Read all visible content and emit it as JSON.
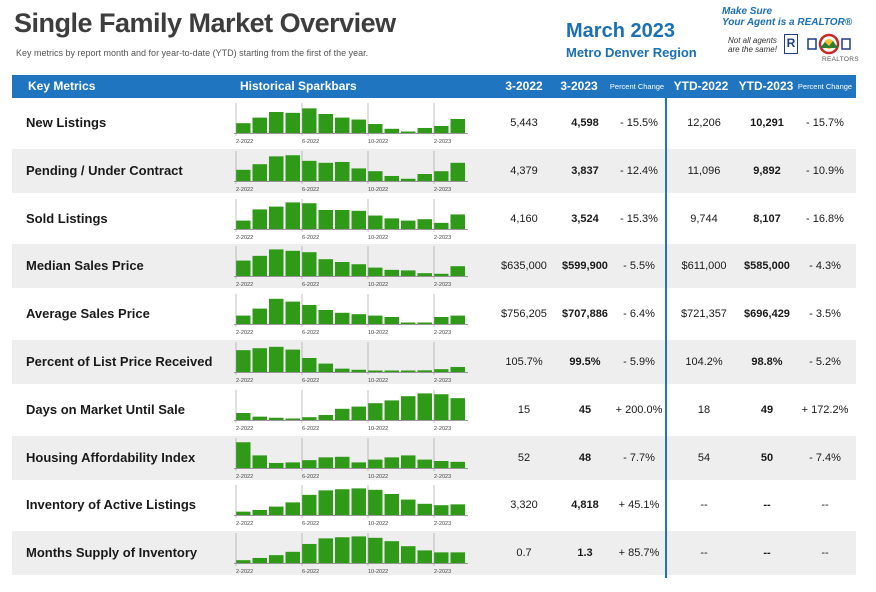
{
  "header": {
    "title": "Single Family Market Overview",
    "subtitle": "Key metrics by report month and for year-to-date (YTD) starting from the first of the year.",
    "month": "March 2023",
    "region": "Metro Denver Region"
  },
  "badge": {
    "line1": "Make Sure",
    "line2": "Your Agent is a REALTOR®",
    "note1": "Not all agents",
    "note2": "are the same!",
    "r_mark": "R",
    "org": "REALTORS"
  },
  "columns": {
    "metric": "Key Metrics",
    "spark": "Historical Sparkbars",
    "prev": "3-2022",
    "curr": "3-2023",
    "pct": "Percent Change",
    "ytd_prev": "YTD-2022",
    "ytd_curr": "YTD-2023",
    "ytd_pct": "Percent Change"
  },
  "spark_axis": [
    "2-2022",
    "6-2022",
    "10-2022",
    "2-2023"
  ],
  "colors": {
    "header": "#1f75bf",
    "bar": "#2f9a17",
    "shade": "#eeeeee",
    "title": "#3d3d3d",
    "accent": "#1a6fb5"
  },
  "rows": [
    {
      "name": "New Listings",
      "prev": "5,443",
      "curr": "4,598",
      "pct": "- 15.5%",
      "ytd_prev": "12,206",
      "ytd_curr": "10,291",
      "ytd_pct": "- 15.7%",
      "spark": [
        0.35,
        0.55,
        0.75,
        0.72,
        0.88,
        0.68,
        0.55,
        0.48,
        0.32,
        0.15,
        0.05,
        0.18,
        0.25,
        0.5
      ]
    },
    {
      "name": "Pending / Under Contract",
      "prev": "4,379",
      "curr": "3,837",
      "pct": "- 12.4%",
      "ytd_prev": "11,096",
      "ytd_curr": "9,892",
      "ytd_pct": "- 10.9%",
      "spark": [
        0.4,
        0.6,
        0.88,
        0.92,
        0.72,
        0.65,
        0.68,
        0.45,
        0.35,
        0.18,
        0.08,
        0.25,
        0.35,
        0.65
      ]
    },
    {
      "name": "Sold Listings",
      "prev": "4,160",
      "curr": "3,524",
      "pct": "- 15.3%",
      "ytd_prev": "9,744",
      "ytd_curr": "8,107",
      "ytd_pct": "- 16.8%",
      "spark": [
        0.3,
        0.7,
        0.8,
        0.95,
        0.92,
        0.68,
        0.68,
        0.65,
        0.48,
        0.38,
        0.3,
        0.35,
        0.22,
        0.52
      ]
    },
    {
      "name": "Median Sales Price",
      "prev": "$635,000",
      "curr": "$599,900",
      "pct": "- 5.5%",
      "ytd_prev": "$611,000",
      "ytd_curr": "$585,000",
      "ytd_pct": "- 4.3%",
      "spark": [
        0.55,
        0.72,
        0.95,
        0.9,
        0.85,
        0.6,
        0.5,
        0.42,
        0.3,
        0.22,
        0.2,
        0.1,
        0.08,
        0.35
      ]
    },
    {
      "name": "Average Sales Price",
      "prev": "$756,205",
      "curr": "$707,886",
      "pct": "- 6.4%",
      "ytd_prev": "$721,357",
      "ytd_curr": "$696,429",
      "ytd_pct": "- 3.5%",
      "spark": [
        0.3,
        0.55,
        0.9,
        0.8,
        0.68,
        0.5,
        0.4,
        0.35,
        0.3,
        0.25,
        0.05,
        0.05,
        0.25,
        0.3
      ]
    },
    {
      "name": "Percent of List Price Received",
      "prev": "105.7%",
      "curr": "99.5%",
      "pct": "- 5.9%",
      "ytd_prev": "104.2%",
      "ytd_curr": "98.8%",
      "ytd_pct": "- 5.2%",
      "spark": [
        0.78,
        0.85,
        0.9,
        0.8,
        0.5,
        0.3,
        0.12,
        0.08,
        0.05,
        0.05,
        0.05,
        0.06,
        0.1,
        0.18
      ]
    },
    {
      "name": "Days on Market Until Sale",
      "prev": "15",
      "curr": "45",
      "pct": "+ 200.0%",
      "ytd_prev": "18",
      "ytd_curr": "49",
      "ytd_pct": "+ 172.2%",
      "spark": [
        0.25,
        0.12,
        0.08,
        0.05,
        0.1,
        0.18,
        0.4,
        0.48,
        0.6,
        0.7,
        0.85,
        0.95,
        0.92,
        0.78
      ]
    },
    {
      "name": "Housing Affordability Index",
      "prev": "52",
      "curr": "48",
      "pct": "- 7.7%",
      "ytd_prev": "54",
      "ytd_curr": "50",
      "ytd_pct": "- 7.4%",
      "spark": [
        0.92,
        0.45,
        0.18,
        0.2,
        0.28,
        0.38,
        0.4,
        0.2,
        0.3,
        0.38,
        0.45,
        0.3,
        0.25,
        0.22
      ]
    },
    {
      "name": "Inventory of Active Listings",
      "prev": "3,320",
      "curr": "4,818",
      "pct": "+ 45.1%",
      "ytd_prev": "--",
      "ytd_curr": "--",
      "ytd_pct": "--",
      "spark": [
        0.12,
        0.18,
        0.3,
        0.45,
        0.72,
        0.88,
        0.92,
        0.95,
        0.9,
        0.75,
        0.55,
        0.4,
        0.35,
        0.38
      ]
    },
    {
      "name": "Months Supply of Inventory",
      "prev": "0.7",
      "curr": "1.3",
      "pct": "+ 85.7%",
      "ytd_prev": "--",
      "ytd_curr": "--",
      "ytd_pct": "--",
      "spark": [
        0.1,
        0.18,
        0.28,
        0.4,
        0.68,
        0.88,
        0.92,
        0.95,
        0.9,
        0.78,
        0.6,
        0.45,
        0.38,
        0.38
      ]
    }
  ]
}
